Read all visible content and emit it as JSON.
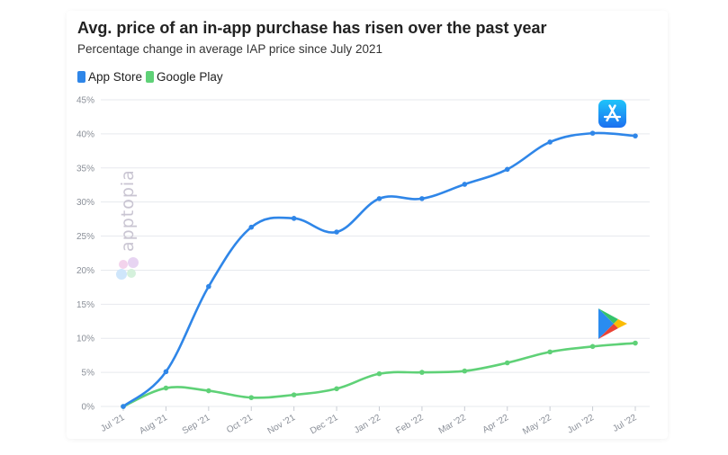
{
  "title": "Avg. price of an in-app purchase has risen over the past year",
  "subtitle": "Percentage change in average IAP price since July 2021",
  "watermark": "apptopia",
  "icons": {
    "app_store": "app-store-icon",
    "google_play": "google-play-icon"
  },
  "colors": {
    "app_store": "#2f86e8",
    "google_play": "#5fd177",
    "grid": "#e7e9ee"
  },
  "chart_data": {
    "type": "line",
    "categories": [
      "Jul '21",
      "Aug '21",
      "Sep '21",
      "Oct '21",
      "Nov '21",
      "Dec '21",
      "Jan '22",
      "Feb '22",
      "Mar '22",
      "Apr '22",
      "May '22",
      "Jun '22",
      "Jul '22"
    ],
    "series": [
      {
        "name": "App Store",
        "values": [
          0,
          5.1,
          17.6,
          26.3,
          27.6,
          25.6,
          30.5,
          30.5,
          32.6,
          34.8,
          38.8,
          40.1,
          39.7
        ]
      },
      {
        "name": "Google Play",
        "values": [
          0,
          2.7,
          2.3,
          1.3,
          1.7,
          2.6,
          4.8,
          5.0,
          5.2,
          6.4,
          8.0,
          8.8,
          9.3
        ]
      }
    ],
    "ylim": [
      0,
      45
    ],
    "yticks": [
      0,
      5,
      10,
      15,
      20,
      25,
      30,
      35,
      40,
      45
    ],
    "ytick_labels": [
      "0%",
      "5%",
      "10%",
      "15%",
      "20%",
      "25%",
      "30%",
      "35%",
      "40%",
      "45%"
    ],
    "xlabel": "",
    "ylabel": "",
    "grid": true,
    "legend": "top-left"
  }
}
